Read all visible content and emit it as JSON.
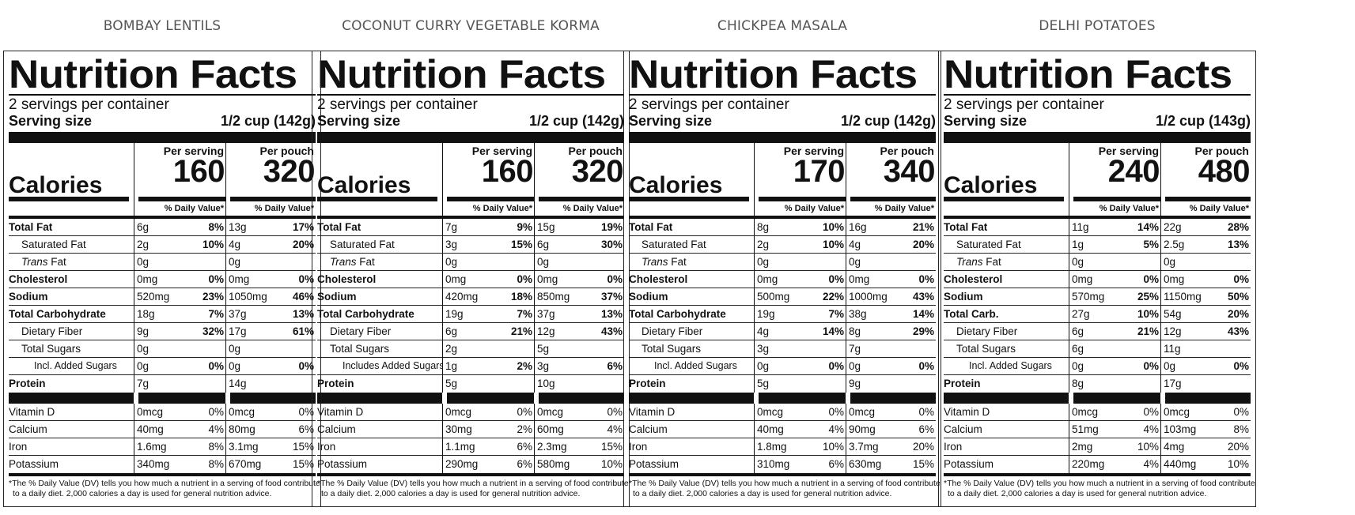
{
  "labels": {
    "nutrition_facts": "Nutrition Facts",
    "serving_size": "Serving size",
    "calories": "Calories",
    "per_serving": "Per serving",
    "per_pouch": "Per pouch",
    "daily_value": "% Daily Value*",
    "footnote_line1": "*The % Daily Value (DV) tells you how much a nutrient in a serving of food contributes",
    "footnote_line2": "to a daily diet. 2,000 calories a day is used for general nutrition advice."
  },
  "products": [
    {
      "name": "BOMBAY LENTILS",
      "servings": "2 servings per container",
      "serving_size": "1/2 cup (142g)",
      "cal_serving": "160",
      "cal_pouch": "320",
      "nutrients": [
        {
          "name": "Total Fat",
          "s_amt": "6g",
          "s_dv": "8%",
          "p_amt": "13g",
          "p_dv": "17%"
        },
        {
          "name": "Saturated Fat",
          "s_amt": "2g",
          "s_dv": "10%",
          "p_amt": "4g",
          "p_dv": "20%"
        },
        {
          "name_italic": "Trans",
          "name": " Fat",
          "s_amt": "0g",
          "s_dv": "",
          "p_amt": "0g",
          "p_dv": ""
        },
        {
          "name": "Cholesterol",
          "s_amt": "0mg",
          "s_dv": "0%",
          "p_amt": "0mg",
          "p_dv": "0%"
        },
        {
          "name": "Sodium",
          "s_amt": "520mg",
          "s_dv": "23%",
          "p_amt": "1050mg",
          "p_dv": "46%"
        },
        {
          "name": "Total Carbohydrate",
          "s_amt": "18g",
          "s_dv": "7%",
          "p_amt": "37g",
          "p_dv": "13%"
        },
        {
          "name": "Dietary Fiber",
          "s_amt": "9g",
          "s_dv": "32%",
          "p_amt": "17g",
          "p_dv": "61%"
        },
        {
          "name": "Total Sugars",
          "s_amt": "0g",
          "s_dv": "",
          "p_amt": "0g",
          "p_dv": ""
        },
        {
          "name": "Incl. Added Sugars",
          "s_amt": "0g",
          "s_dv": "0%",
          "p_amt": "0g",
          "p_dv": "0%"
        },
        {
          "name": "Protein",
          "s_amt": "7g",
          "s_dv": "",
          "p_amt": "14g",
          "p_dv": ""
        }
      ],
      "vitamins": [
        {
          "name": "Vitamin D",
          "s_amt": "0mcg",
          "s_dv": "0%",
          "p_amt": "0mcg",
          "p_dv": "0%"
        },
        {
          "name": "Calcium",
          "s_amt": "40mg",
          "s_dv": "4%",
          "p_amt": "80mg",
          "p_dv": "6%"
        },
        {
          "name": "Iron",
          "s_amt": "1.6mg",
          "s_dv": "8%",
          "p_amt": "3.1mg",
          "p_dv": "15%"
        },
        {
          "name": "Potassium",
          "s_amt": "340mg",
          "s_dv": "8%",
          "p_amt": "670mg",
          "p_dv": "15%"
        }
      ]
    },
    {
      "name": "COCONUT CURRY VEGETABLE KORMA",
      "servings": "2 servings per container",
      "serving_size": "1/2 cup (142g)",
      "cal_serving": "160",
      "cal_pouch": "320",
      "nutrients": [
        {
          "name": "Total Fat",
          "s_amt": "7g",
          "s_dv": "9%",
          "p_amt": "15g",
          "p_dv": "19%"
        },
        {
          "name": "Saturated Fat",
          "s_amt": "3g",
          "s_dv": "15%",
          "p_amt": "6g",
          "p_dv": "30%"
        },
        {
          "name_italic": "Trans",
          "name": " Fat",
          "s_amt": "0g",
          "s_dv": "",
          "p_amt": "0g",
          "p_dv": ""
        },
        {
          "name": "Cholesterol",
          "s_amt": "0mg",
          "s_dv": "0%",
          "p_amt": "0mg",
          "p_dv": "0%"
        },
        {
          "name": "Sodium",
          "s_amt": "420mg",
          "s_dv": "18%",
          "p_amt": "850mg",
          "p_dv": "37%"
        },
        {
          "name": "Total Carbohydrate",
          "s_amt": "19g",
          "s_dv": "7%",
          "p_amt": "37g",
          "p_dv": "13%"
        },
        {
          "name": "Dietary Fiber",
          "s_amt": "6g",
          "s_dv": "21%",
          "p_amt": "12g",
          "p_dv": "43%"
        },
        {
          "name": "Total Sugars",
          "s_amt": "2g",
          "s_dv": "",
          "p_amt": "5g",
          "p_dv": ""
        },
        {
          "name": "Includes Added Sugars",
          "s_amt": "1g",
          "s_dv": "2%",
          "p_amt": "3g",
          "p_dv": "6%"
        },
        {
          "name": "Protein",
          "s_amt": "5g",
          "s_dv": "",
          "p_amt": "10g",
          "p_dv": ""
        }
      ],
      "vitamins": [
        {
          "name": "Vitamin D",
          "s_amt": "0mcg",
          "s_dv": "0%",
          "p_amt": "0mcg",
          "p_dv": "0%"
        },
        {
          "name": "Calcium",
          "s_amt": "30mg",
          "s_dv": "2%",
          "p_amt": "60mg",
          "p_dv": "4%"
        },
        {
          "name": "Iron",
          "s_amt": "1.1mg",
          "s_dv": "6%",
          "p_amt": "2.3mg",
          "p_dv": "15%"
        },
        {
          "name": "Potassium",
          "s_amt": "290mg",
          "s_dv": "6%",
          "p_amt": "580mg",
          "p_dv": "10%"
        }
      ]
    },
    {
      "name": "CHICKPEA MASALA",
      "servings": "2 servings per container",
      "serving_size": "1/2 cup (142g)",
      "cal_serving": "170",
      "cal_pouch": "340",
      "nutrients": [
        {
          "name": "Total Fat",
          "s_amt": "8g",
          "s_dv": "10%",
          "p_amt": "16g",
          "p_dv": "21%"
        },
        {
          "name": "Saturated Fat",
          "s_amt": "2g",
          "s_dv": "10%",
          "p_amt": "4g",
          "p_dv": "20%"
        },
        {
          "name_italic": "Trans",
          "name": " Fat",
          "s_amt": "0g",
          "s_dv": "",
          "p_amt": "0g",
          "p_dv": ""
        },
        {
          "name": "Cholesterol",
          "s_amt": "0mg",
          "s_dv": "0%",
          "p_amt": "0mg",
          "p_dv": "0%"
        },
        {
          "name": "Sodium",
          "s_amt": "500mg",
          "s_dv": "22%",
          "p_amt": "1000mg",
          "p_dv": "43%"
        },
        {
          "name": "Total Carbohydrate",
          "s_amt": "19g",
          "s_dv": "7%",
          "p_amt": "38g",
          "p_dv": "14%"
        },
        {
          "name": "Dietary Fiber",
          "s_amt": "4g",
          "s_dv": "14%",
          "p_amt": "8g",
          "p_dv": "29%"
        },
        {
          "name": "Total Sugars",
          "s_amt": "3g",
          "s_dv": "",
          "p_amt": "7g",
          "p_dv": ""
        },
        {
          "name": "Incl. Added Sugars",
          "s_amt": "0g",
          "s_dv": "0%",
          "p_amt": "0g",
          "p_dv": "0%"
        },
        {
          "name": "Protein",
          "s_amt": "5g",
          "s_dv": "",
          "p_amt": "9g",
          "p_dv": ""
        }
      ],
      "vitamins": [
        {
          "name": "Vitamin D",
          "s_amt": "0mcg",
          "s_dv": "0%",
          "p_amt": "0mcg",
          "p_dv": "0%"
        },
        {
          "name": "Calcium",
          "s_amt": "40mg",
          "s_dv": "4%",
          "p_amt": "90mg",
          "p_dv": "6%"
        },
        {
          "name": "Iron",
          "s_amt": "1.8mg",
          "s_dv": "10%",
          "p_amt": "3.7mg",
          "p_dv": "20%"
        },
        {
          "name": "Potassium",
          "s_amt": "310mg",
          "s_dv": "6%",
          "p_amt": "630mg",
          "p_dv": "15%"
        }
      ]
    },
    {
      "name": "DELHI POTATOES",
      "servings": "2 servings per container",
      "serving_size": "1/2 cup (143g)",
      "cal_serving": "240",
      "cal_pouch": "480",
      "nutrients": [
        {
          "name": "Total Fat",
          "s_amt": "11g",
          "s_dv": "14%",
          "p_amt": "22g",
          "p_dv": "28%"
        },
        {
          "name": "Saturated Fat",
          "s_amt": "1g",
          "s_dv": "5%",
          "p_amt": "2.5g",
          "p_dv": "13%"
        },
        {
          "name_italic": "Trans",
          "name": " Fat",
          "s_amt": "0g",
          "s_dv": "",
          "p_amt": "0g",
          "p_dv": ""
        },
        {
          "name": "Cholesterol",
          "s_amt": "0mg",
          "s_dv": "0%",
          "p_amt": "0mg",
          "p_dv": "0%"
        },
        {
          "name": "Sodium",
          "s_amt": "570mg",
          "s_dv": "25%",
          "p_amt": "1150mg",
          "p_dv": "50%"
        },
        {
          "name": "Total Carb.",
          "s_amt": "27g",
          "s_dv": "10%",
          "p_amt": "54g",
          "p_dv": "20%"
        },
        {
          "name": "Dietary Fiber",
          "s_amt": "6g",
          "s_dv": "21%",
          "p_amt": "12g",
          "p_dv": "43%"
        },
        {
          "name": "Total Sugars",
          "s_amt": "6g",
          "s_dv": "",
          "p_amt": "11g",
          "p_dv": ""
        },
        {
          "name": "Incl. Added Sugars",
          "s_amt": "0g",
          "s_dv": "0%",
          "p_amt": "0g",
          "p_dv": "0%"
        },
        {
          "name": "Protein",
          "s_amt": "8g",
          "s_dv": "",
          "p_amt": "17g",
          "p_dv": ""
        }
      ],
      "vitamins": [
        {
          "name": "Vitamin D",
          "s_amt": "0mcg",
          "s_dv": "0%",
          "p_amt": "0mcg",
          "p_dv": "0%"
        },
        {
          "name": "Calcium",
          "s_amt": "51mg",
          "s_dv": "4%",
          "p_amt": "103mg",
          "p_dv": "8%"
        },
        {
          "name": "Iron",
          "s_amt": "2mg",
          "s_dv": "10%",
          "p_amt": "4mg",
          "p_dv": "20%"
        },
        {
          "name": "Potassium",
          "s_amt": "220mg",
          "s_dv": "4%",
          "p_amt": "440mg",
          "p_dv": "10%"
        }
      ]
    }
  ]
}
